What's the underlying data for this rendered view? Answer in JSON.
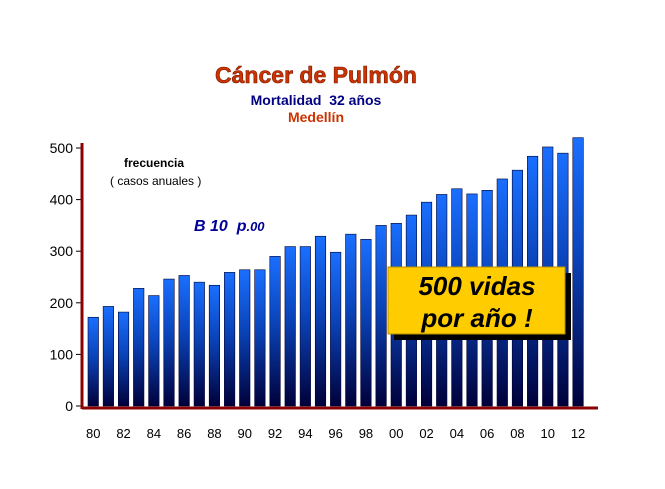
{
  "chart_data": {
    "type": "bar",
    "title": "Cáncer de Pulmón",
    "subtitle": "Mortalidad  32 años",
    "subtitle2": "Medellín",
    "ylabel": "frecuencia",
    "ylabel_note": "( casos anuales )",
    "stat_label": "B 10  p",
    "stat_value": ".00",
    "callout_line1": "500 vidas",
    "callout_line2": "por año !",
    "ylim": [
      0,
      500
    ],
    "yticks": [
      "0",
      "100",
      "200",
      "300",
      "400",
      "500"
    ],
    "xtick_labels": [
      "80",
      "82",
      "84",
      "86",
      "88",
      "90",
      "92",
      "94",
      "96",
      "98",
      "00",
      "02",
      "04",
      "06",
      "08",
      "10",
      "12"
    ],
    "categories": [
      "80",
      "81",
      "82",
      "83",
      "84",
      "85",
      "86",
      "87",
      "88",
      "89",
      "90",
      "91",
      "92",
      "93",
      "94",
      "95",
      "96",
      "97",
      "98",
      "99",
      "00",
      "01",
      "02",
      "03",
      "04",
      "05",
      "06",
      "07",
      "08",
      "09",
      "10",
      "11",
      "12"
    ],
    "values": [
      172,
      193,
      182,
      228,
      214,
      246,
      253,
      240,
      234,
      259,
      264,
      264,
      290,
      309,
      309,
      329,
      298,
      333,
      323,
      350,
      354,
      370,
      395,
      410,
      421,
      411,
      418,
      440,
      457,
      484,
      502,
      490,
      520
    ],
    "colors": {
      "bar_top": "#1a6fff",
      "bar_bottom": "#00003a",
      "axis": "#8b0000",
      "callout_fill": "#ffcc00"
    }
  }
}
